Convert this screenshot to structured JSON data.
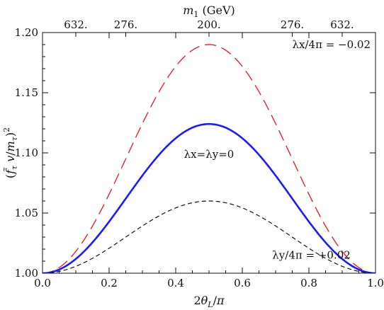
{
  "chart_data": {
    "type": "line",
    "xlabel": "2θL/π",
    "ylabel": "(f̃τ v/mτ)²",
    "top_axis_label": "m1 (GeV)",
    "xlim": [
      0.0,
      1.0
    ],
    "ylim": [
      1.0,
      1.2
    ],
    "x_ticks": [
      {
        "value": 0.0,
        "label": "0.0"
      },
      {
        "value": 0.2,
        "label": "0.2"
      },
      {
        "value": 0.4,
        "label": "0.4"
      },
      {
        "value": 0.6,
        "label": "0.6"
      },
      {
        "value": 0.8,
        "label": "0.8"
      },
      {
        "value": 1.0,
        "label": "1.0"
      }
    ],
    "y_ticks": [
      {
        "value": 1.0,
        "label": "1.00"
      },
      {
        "value": 1.05,
        "label": "1.05"
      },
      {
        "value": 1.1,
        "label": "1.10"
      },
      {
        "value": 1.15,
        "label": "1.15"
      },
      {
        "value": 1.2,
        "label": "1.20"
      }
    ],
    "top_ticks": [
      {
        "value": 0.1,
        "label": "632."
      },
      {
        "value": 0.25,
        "label": "276."
      },
      {
        "value": 0.5,
        "label": "200."
      },
      {
        "value": 0.75,
        "label": "276."
      },
      {
        "value": 0.9,
        "label": "632."
      }
    ],
    "series": [
      {
        "label": "λx/4π = −0.02",
        "label_x": 0.75,
        "label_y": 1.187,
        "color": "#e8202a",
        "style": "long-dash",
        "peak": 1.19,
        "x": [
          0,
          0.05,
          0.1,
          0.15,
          0.2,
          0.25,
          0.3,
          0.35,
          0.4,
          0.45,
          0.5,
          0.55,
          0.6,
          0.65,
          0.7,
          0.75,
          0.8,
          0.85,
          0.9,
          0.95,
          1.0
        ],
        "y": [
          1.0,
          1.0046,
          1.0181,
          1.0393,
          1.0658,
          1.095,
          1.1237,
          1.149,
          1.1681,
          1.18,
          1.19,
          1.18,
          1.1681,
          1.149,
          1.1237,
          1.095,
          1.0658,
          1.0393,
          1.0181,
          1.0046,
          1.0
        ]
      },
      {
        "label": "λx=λy=0",
        "label_x": 0.5,
        "label_y": 1.096,
        "color": "#1a1aff",
        "style": "solid",
        "peak": 1.124,
        "x": [
          0,
          0.05,
          0.1,
          0.15,
          0.2,
          0.25,
          0.3,
          0.35,
          0.4,
          0.45,
          0.5,
          0.55,
          0.6,
          0.65,
          0.7,
          0.75,
          0.8,
          0.85,
          0.9,
          0.95,
          1.0
        ],
        "y": [
          1.0,
          1.003,
          1.0118,
          1.0255,
          1.0428,
          1.062,
          1.0812,
          1.0984,
          1.1122,
          1.121,
          1.124,
          1.121,
          1.1122,
          1.0984,
          1.0812,
          1.062,
          1.0428,
          1.0255,
          1.0118,
          1.003,
          1.0
        ]
      },
      {
        "label": "λy/4π = +0.02",
        "label_x": 0.69,
        "label_y": 1.012,
        "color": "#111111",
        "style": "short-dash",
        "peak": 1.06,
        "x": [
          0,
          0.05,
          0.1,
          0.15,
          0.2,
          0.25,
          0.3,
          0.35,
          0.4,
          0.45,
          0.5,
          0.55,
          0.6,
          0.65,
          0.7,
          0.75,
          0.8,
          0.85,
          0.9,
          0.95,
          1.0
        ],
        "y": [
          1.0,
          1.0015,
          1.0057,
          1.0124,
          1.0207,
          1.03,
          1.0393,
          1.0476,
          1.0543,
          1.0585,
          1.06,
          1.0585,
          1.0543,
          1.0476,
          1.0393,
          1.03,
          1.0207,
          1.0124,
          1.0057,
          1.0015,
          1.0
        ]
      }
    ]
  }
}
